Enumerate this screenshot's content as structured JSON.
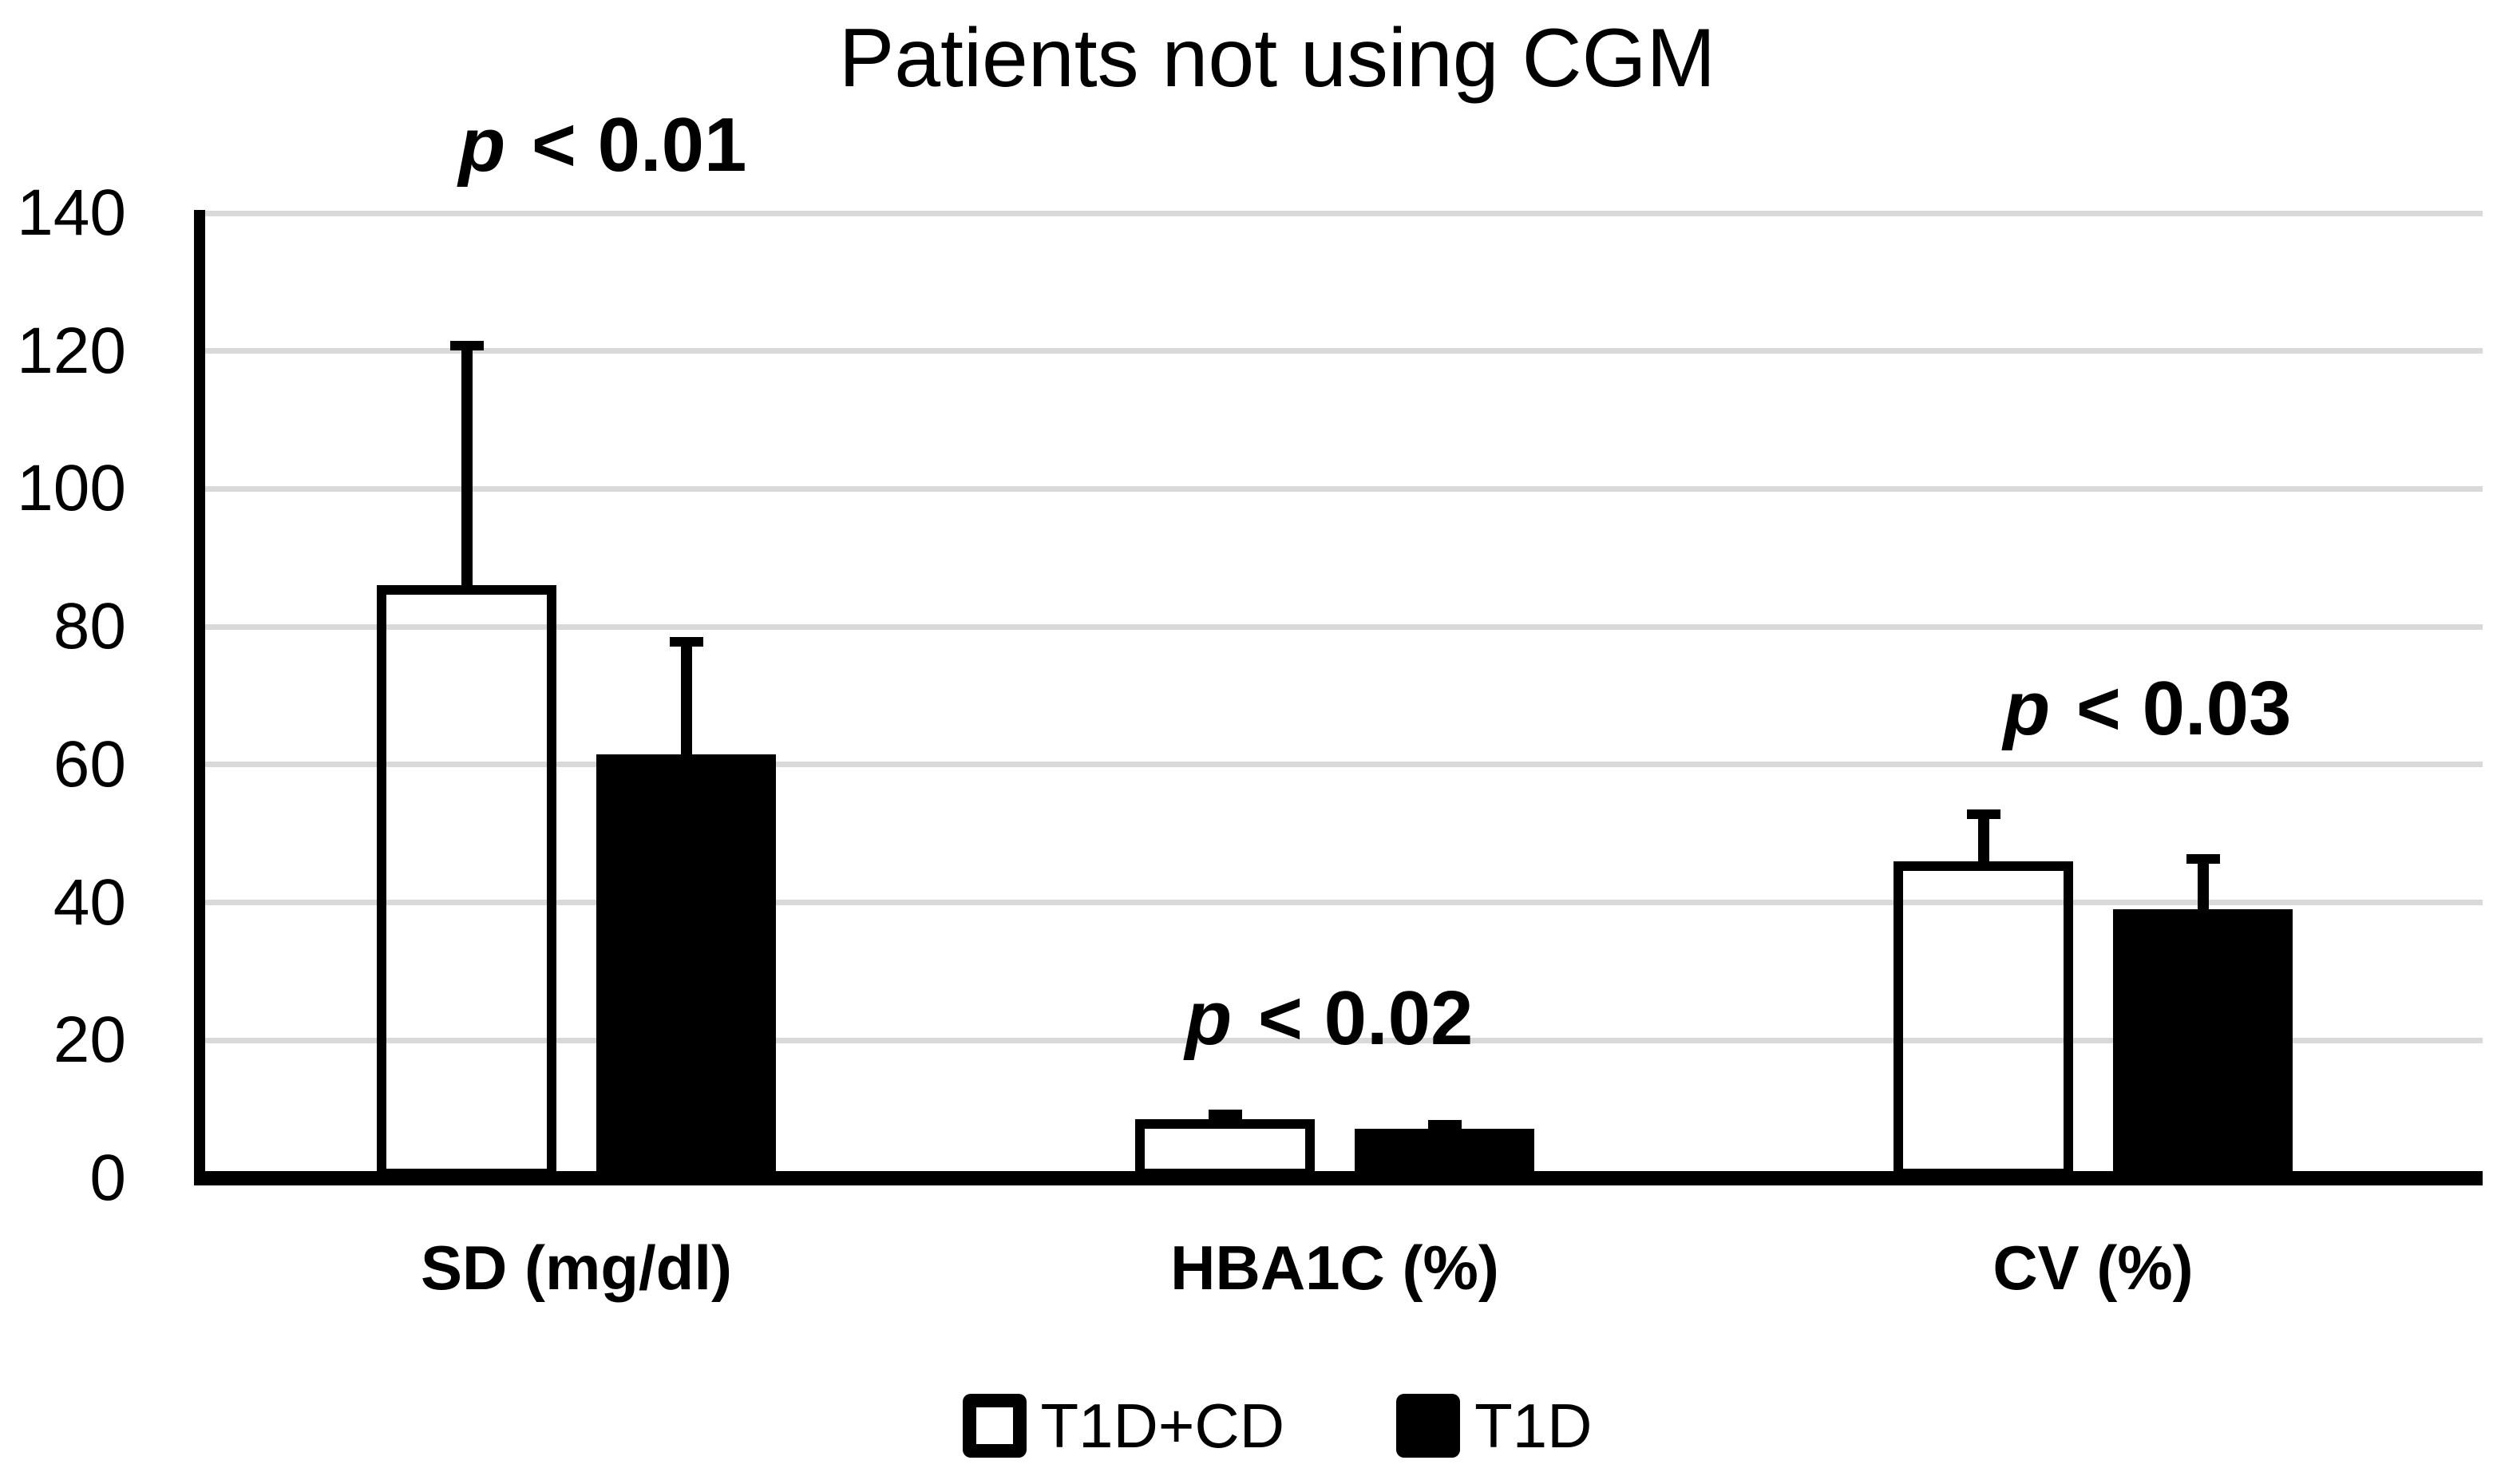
{
  "chart_data": {
    "type": "bar",
    "title": "Patients not using CGM",
    "categories": [
      "SD (mg/dl)",
      "HBA1C (%)",
      "CV (%)"
    ],
    "series": [
      {
        "name": "T1D+CD",
        "style": "hollow",
        "fill": "#ffffff",
        "values": [
          86,
          8.6,
          46
        ],
        "error_tops": [
          121.5,
          10,
          53.5
        ]
      },
      {
        "name": "T1D",
        "style": "solid",
        "fill": "#000000",
        "values": [
          61.5,
          7.2,
          39
        ],
        "error_tops": [
          78.5,
          8.4,
          47
        ]
      }
    ],
    "annotations": [
      {
        "pvar": "p",
        "text": "< 0.01",
        "category": "SD (mg/dl)",
        "x": 755,
        "y": 132
      },
      {
        "pvar": "p",
        "text": "< 0.02",
        "category": "HBA1C (%)",
        "x": 1665,
        "y": 1226
      },
      {
        "pvar": "p",
        "text": "< 0.03",
        "category": "CV (%)",
        "x": 2690,
        "y": 838
      }
    ],
    "ylabel": "",
    "xlabel": "",
    "ylim": [
      0,
      140
    ],
    "yticks": [
      0,
      20,
      40,
      60,
      80,
      100,
      120,
      140
    ],
    "grid": true,
    "legend_position": "bottom",
    "colors": {
      "gridline": "#d9d9d9",
      "axis": "#000000",
      "bar_outline": "#000000",
      "background": "#ffffff"
    }
  }
}
